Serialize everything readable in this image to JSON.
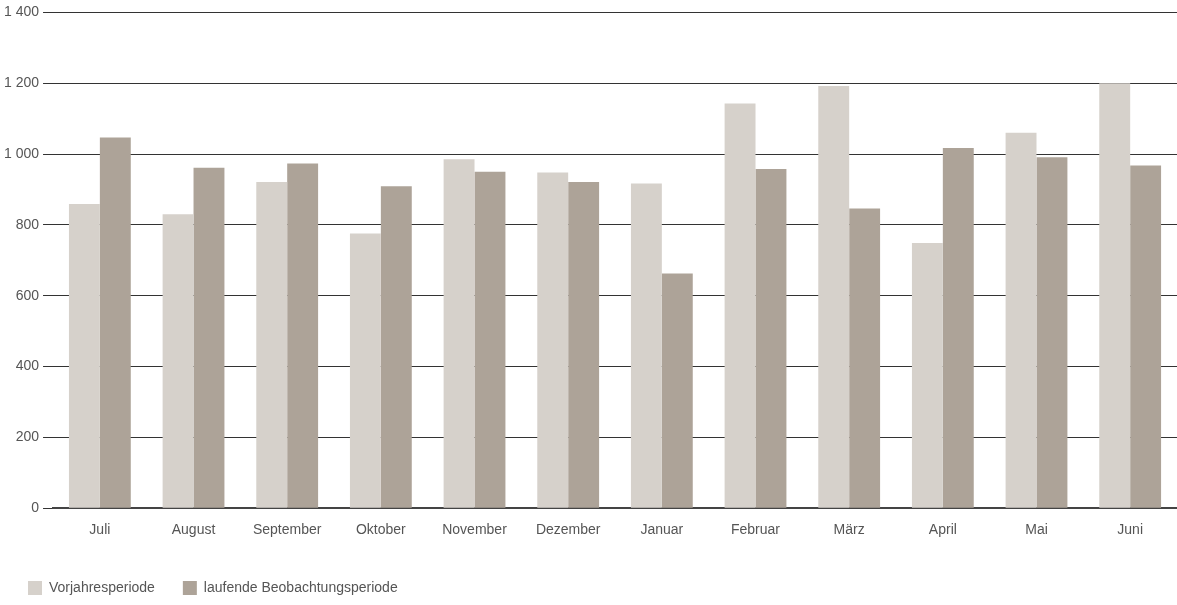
{
  "chart_data": {
    "type": "bar",
    "categories": [
      "Juli",
      "August",
      "September",
      "Oktober",
      "November",
      "Dezember",
      "Januar",
      "Februar",
      "März",
      "April",
      "Mai",
      "Juni"
    ],
    "series": [
      {
        "name": "Vorjahresperiode",
        "color": "#d6d1cb",
        "values": [
          859,
          830,
          921,
          776,
          985,
          948,
          917,
          1143,
          1192,
          749,
          1060,
          1200
        ]
      },
      {
        "name": "laufende Beobachtungsperiode",
        "color": "#ada398",
        "values": [
          1047,
          961,
          973,
          909,
          950,
          921,
          663,
          958,
          846,
          1017,
          991,
          968
        ]
      }
    ],
    "ylim": [
      0,
      1400
    ],
    "yticks": [
      0,
      200,
      400,
      600,
      800,
      {
        "value": 1000,
        "label": "1 000"
      },
      {
        "value": 1200,
        "label": "1 200"
      },
      {
        "value": 1400,
        "label": "1 400"
      }
    ],
    "grid": "y",
    "legend": "bottom left"
  }
}
